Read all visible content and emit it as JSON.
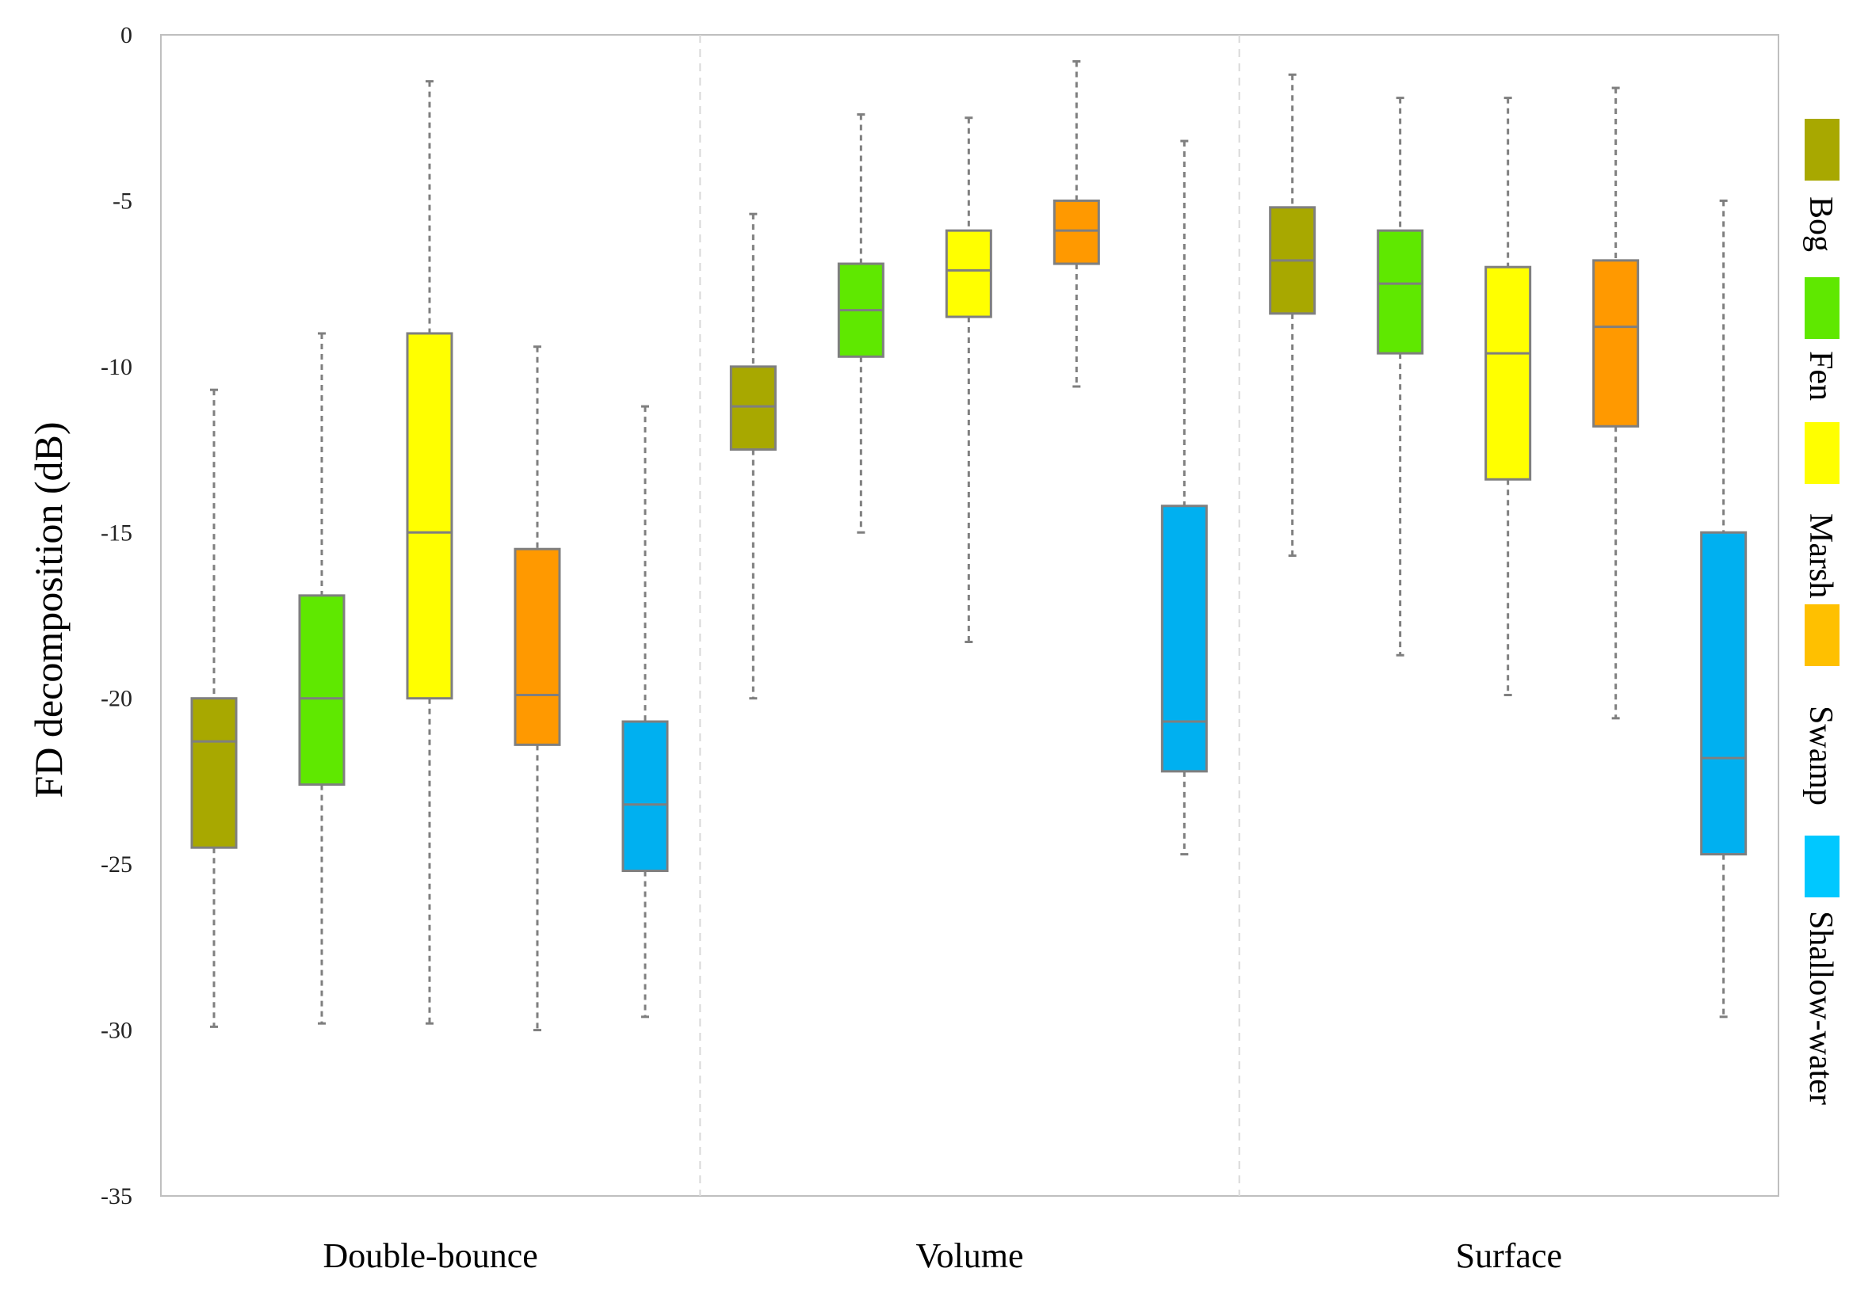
{
  "chart_data": {
    "type": "boxplot",
    "title": "",
    "xlabel": "",
    "ylabel": "FD decomposition (dB)",
    "ylim": [
      -35,
      0
    ],
    "yticks": [
      0,
      -5,
      -10,
      -15,
      -20,
      -25,
      -30,
      -35
    ],
    "groups": [
      "Double-bounce",
      "Volume",
      "Surface"
    ],
    "legend_position": "right",
    "series": [
      {
        "name": "Bog",
        "color": "#A8A800",
        "boxes": [
          {
            "whisker_low": -29.9,
            "q1": -24.5,
            "median": -21.3,
            "q3": -20.0,
            "whisker_high": -10.7
          },
          {
            "whisker_low": -20.0,
            "q1": -12.5,
            "median": -11.2,
            "q3": -10.0,
            "whisker_high": -5.4
          },
          {
            "whisker_low": -15.7,
            "q1": -8.4,
            "median": -6.8,
            "q3": -5.2,
            "whisker_high": -1.2
          }
        ]
      },
      {
        "name": "Fen",
        "color": "#5FE800",
        "boxes": [
          {
            "whisker_low": -29.8,
            "q1": -22.6,
            "median": -20.0,
            "q3": -16.9,
            "whisker_high": -9.0
          },
          {
            "whisker_low": -15.0,
            "q1": -9.7,
            "median": -8.3,
            "q3": -6.9,
            "whisker_high": -2.4
          },
          {
            "whisker_low": -18.7,
            "q1": -9.6,
            "median": -7.5,
            "q3": -5.9,
            "whisker_high": -1.9
          }
        ]
      },
      {
        "name": "Marsh",
        "color": "#FFFF00",
        "boxes": [
          {
            "whisker_low": -29.8,
            "q1": -20.0,
            "median": -15.0,
            "q3": -9.0,
            "whisker_high": -1.4
          },
          {
            "whisker_low": -18.3,
            "q1": -8.5,
            "median": -7.1,
            "q3": -5.9,
            "whisker_high": -2.5
          },
          {
            "whisker_low": -19.9,
            "q1": -13.4,
            "median": -9.6,
            "q3": -7.0,
            "whisker_high": -1.9
          }
        ]
      },
      {
        "name": "Swamp",
        "color": "#FF9900",
        "boxes": [
          {
            "whisker_low": -30.0,
            "q1": -21.4,
            "median": -19.9,
            "q3": -15.5,
            "whisker_high": -9.4
          },
          {
            "whisker_low": -10.6,
            "q1": -6.9,
            "median": -5.9,
            "q3": -5.0,
            "whisker_high": -0.8
          },
          {
            "whisker_low": -20.6,
            "q1": -11.8,
            "median": -8.8,
            "q3": -6.8,
            "whisker_high": -1.6
          }
        ]
      },
      {
        "name": "Shallow-water",
        "color": "#00B0F0",
        "boxes": [
          {
            "whisker_low": -29.6,
            "q1": -25.2,
            "median": -23.2,
            "q3": -20.7,
            "whisker_high": -11.2
          },
          {
            "whisker_low": -24.7,
            "q1": -22.2,
            "median": -20.7,
            "q3": -14.2,
            "whisker_high": -3.2
          },
          {
            "whisker_low": -29.6,
            "q1": -24.7,
            "median": -21.8,
            "q3": -15.0,
            "whisker_high": -5.0
          }
        ]
      }
    ],
    "legend_colors": [
      "#A8A800",
      "#5FE800",
      "#FFFF00",
      "#FFC000",
      "#00C8FF"
    ]
  },
  "colors": {
    "box_stroke": "#7F7F7F",
    "axis": "#BFBFBF",
    "separator": "#D9D9D9"
  }
}
